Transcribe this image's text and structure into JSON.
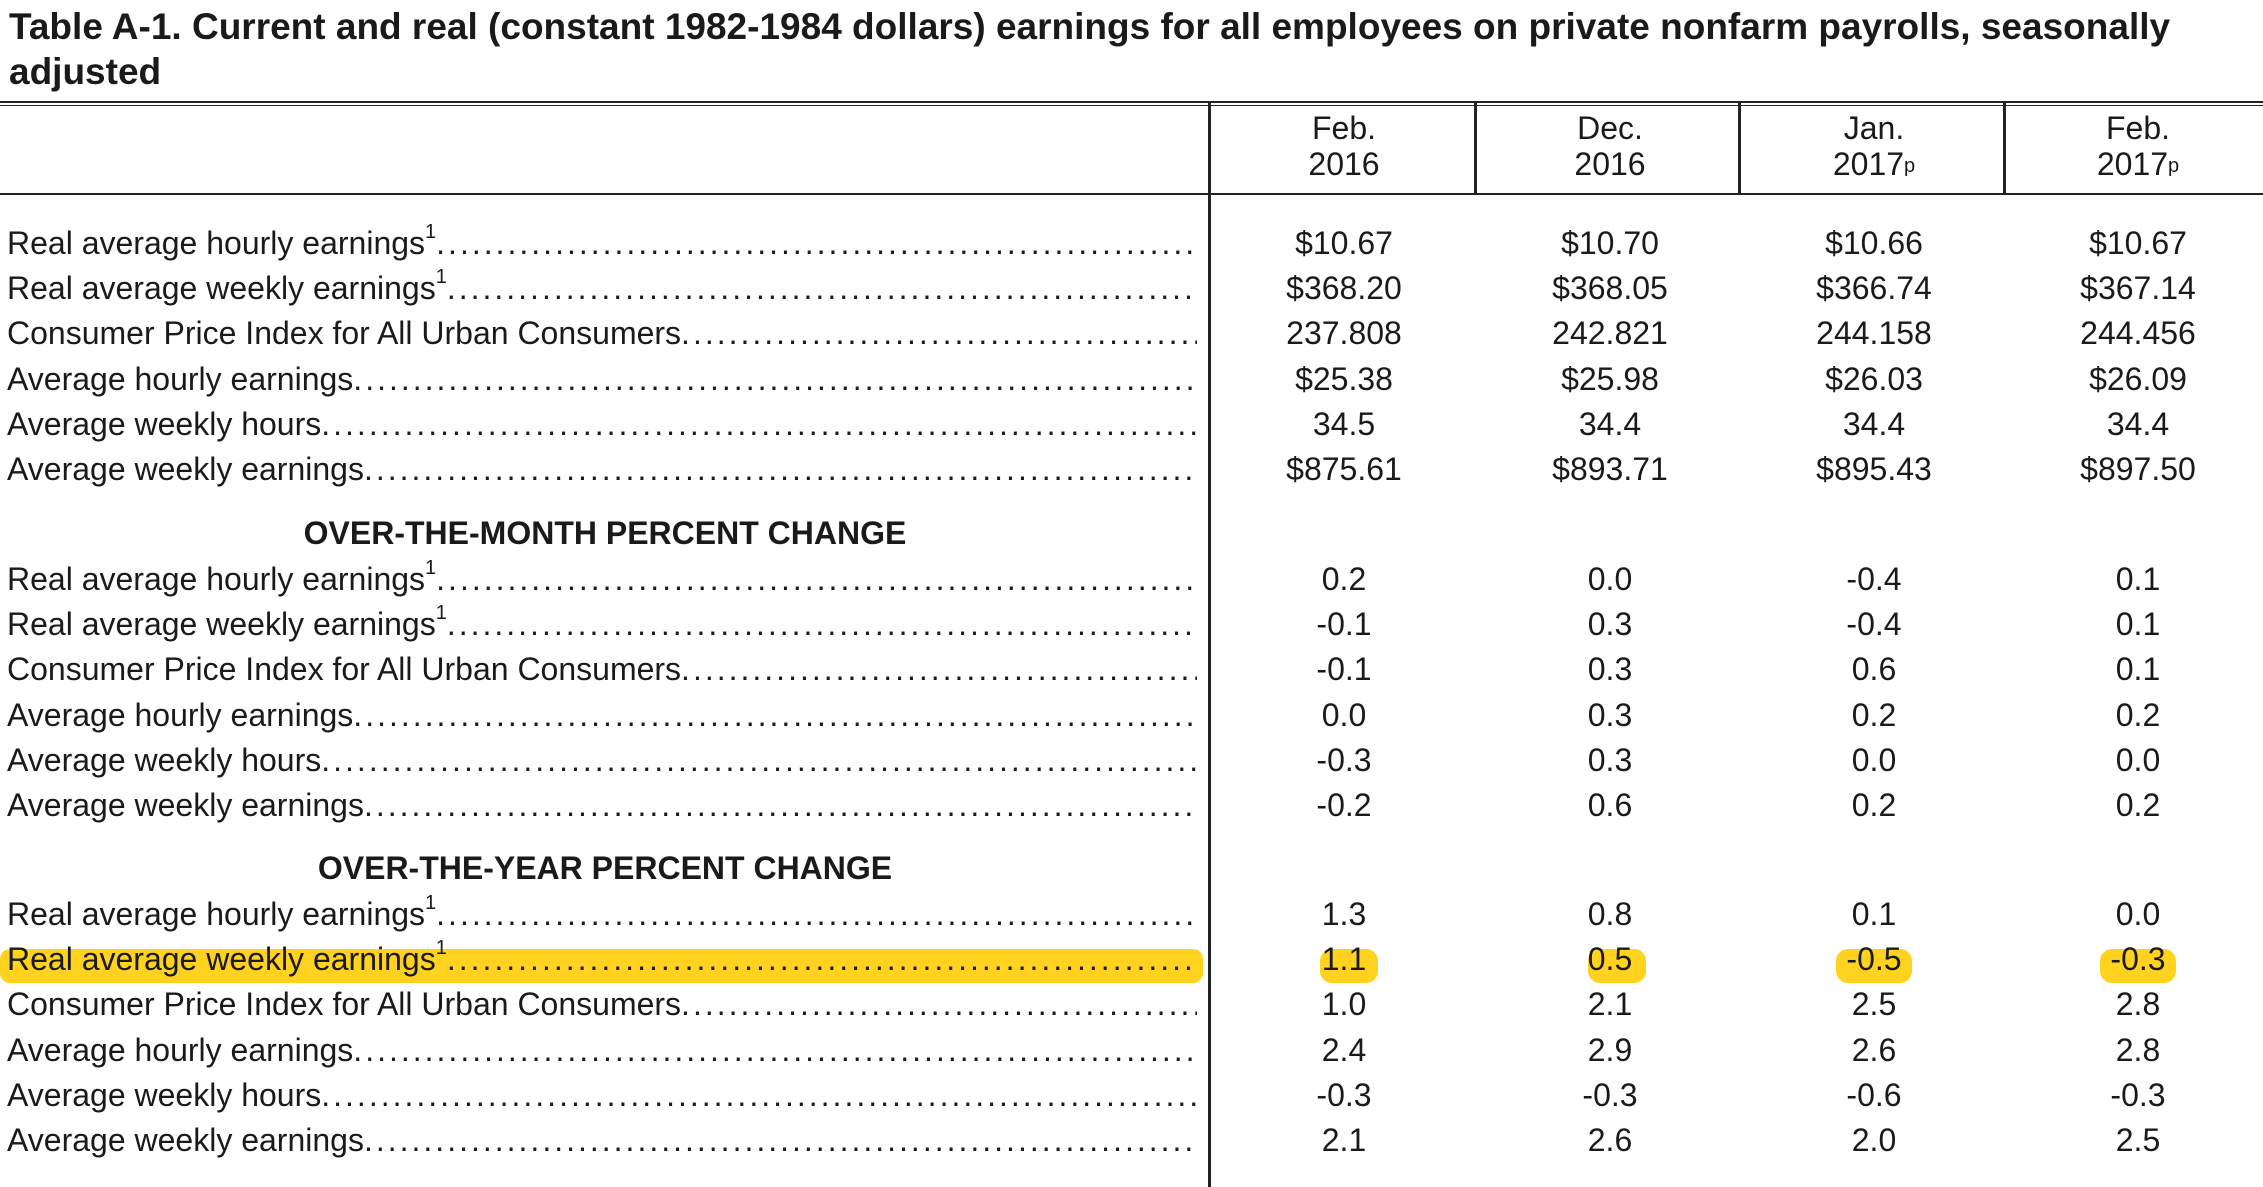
{
  "title": "Table A-1. Current and real (constant 1982-1984 dollars) earnings for all employees on private nonfarm payrolls, seasonally adjusted",
  "columns": [
    {
      "month": "Feb.",
      "year": "2016",
      "mark": ""
    },
    {
      "month": "Dec.",
      "year": "2016",
      "mark": ""
    },
    {
      "month": "Jan.",
      "year": "2017",
      "mark": "p"
    },
    {
      "month": "Feb.",
      "year": "2017",
      "mark": "p"
    }
  ],
  "footnote_mark": "1",
  "highlight_color": "#ffd21f",
  "level": {
    "rows": [
      {
        "label": "Real average hourly earnings",
        "fn": true,
        "values": [
          "$10.67",
          "$10.70",
          "$10.66",
          "$10.67"
        ]
      },
      {
        "label": "Real average weekly earnings",
        "fn": true,
        "values": [
          "$368.20",
          "$368.05",
          "$366.74",
          "$367.14"
        ]
      },
      {
        "label": "Consumer Price Index for All Urban Consumers",
        "fn": false,
        "values": [
          "237.808",
          "242.821",
          "244.158",
          "244.456"
        ]
      },
      {
        "label": "Average hourly earnings",
        "fn": false,
        "values": [
          "$25.38",
          "$25.98",
          "$26.03",
          "$26.09"
        ]
      },
      {
        "label": "Average weekly hours",
        "fn": false,
        "values": [
          "34.5",
          "34.4",
          "34.4",
          "34.4"
        ]
      },
      {
        "label": "Average weekly earnings",
        "fn": false,
        "values": [
          "$875.61",
          "$893.71",
          "$895.43",
          "$897.50"
        ]
      }
    ]
  },
  "month_change": {
    "heading": "OVER-THE-MONTH PERCENT CHANGE",
    "rows": [
      {
        "label": "Real average hourly earnings",
        "fn": true,
        "values": [
          "0.2",
          "0.0",
          "-0.4",
          "0.1"
        ]
      },
      {
        "label": "Real average weekly earnings",
        "fn": true,
        "values": [
          "-0.1",
          "0.3",
          "-0.4",
          "0.1"
        ]
      },
      {
        "label": "Consumer Price Index for All Urban Consumers",
        "fn": false,
        "values": [
          "-0.1",
          "0.3",
          "0.6",
          "0.1"
        ]
      },
      {
        "label": "Average hourly earnings",
        "fn": false,
        "values": [
          "0.0",
          "0.3",
          "0.2",
          "0.2"
        ]
      },
      {
        "label": "Average weekly hours",
        "fn": false,
        "values": [
          "-0.3",
          "0.3",
          "0.0",
          "0.0"
        ]
      },
      {
        "label": "Average weekly earnings",
        "fn": false,
        "values": [
          "-0.2",
          "0.6",
          "0.2",
          "0.2"
        ]
      }
    ]
  },
  "year_change": {
    "heading": "OVER-THE-YEAR PERCENT CHANGE",
    "rows": [
      {
        "label": "Real average hourly earnings",
        "fn": true,
        "values": [
          "1.3",
          "0.8",
          "0.1",
          "0.0"
        ]
      },
      {
        "label": "Real average weekly earnings",
        "fn": true,
        "highlighted": true,
        "values": [
          "1.1",
          "0.5",
          "-0.5",
          "-0.3"
        ]
      },
      {
        "label": "Consumer Price Index for All Urban Consumers",
        "fn": false,
        "values": [
          "1.0",
          "2.1",
          "2.5",
          "2.8"
        ]
      },
      {
        "label": "Average hourly earnings",
        "fn": false,
        "values": [
          "2.4",
          "2.9",
          "2.6",
          "2.8"
        ]
      },
      {
        "label": "Average weekly hours",
        "fn": false,
        "values": [
          "-0.3",
          "-0.3",
          "-0.6",
          "-0.3"
        ]
      },
      {
        "label": "Average weekly earnings",
        "fn": false,
        "values": [
          "2.1",
          "2.6",
          "2.0",
          "2.5"
        ]
      }
    ]
  }
}
